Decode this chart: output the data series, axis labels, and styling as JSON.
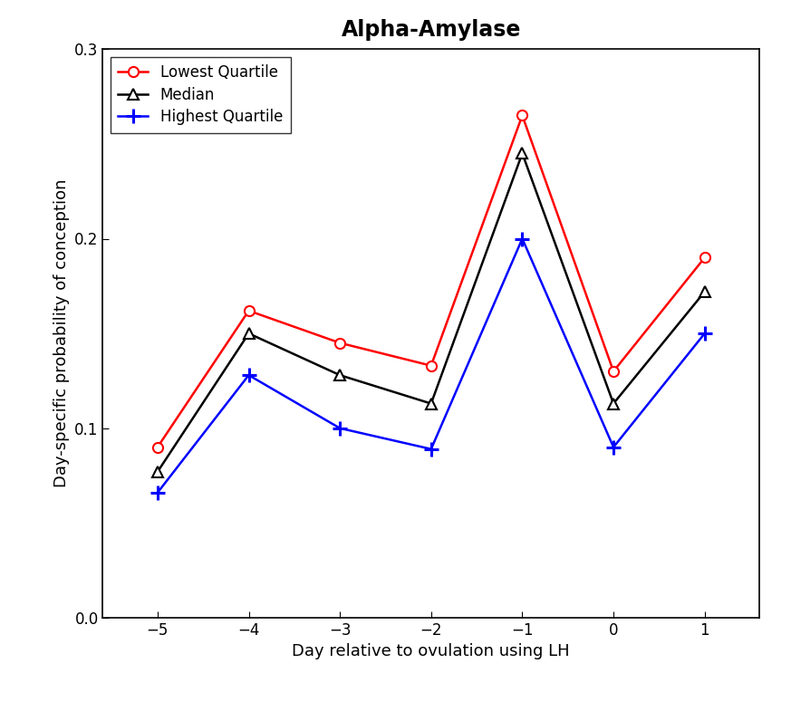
{
  "title": "Alpha-Amylase",
  "xlabel": "Day relative to ovulation using LH",
  "ylabel": "Day-specific probability of conception",
  "x": [
    -5,
    -4,
    -3,
    -2,
    -1,
    0,
    1
  ],
  "lowest_quartile": [
    0.09,
    0.162,
    0.145,
    0.133,
    0.265,
    0.13,
    0.19
  ],
  "median": [
    0.077,
    0.15,
    0.128,
    0.113,
    0.245,
    0.113,
    0.172
  ],
  "highest_quartile": [
    0.066,
    0.128,
    0.1,
    0.089,
    0.2,
    0.09,
    0.15
  ],
  "lowest_color": "#ff0000",
  "median_color": "#000000",
  "highest_color": "#0000ff",
  "ylim": [
    0.0,
    0.3
  ],
  "yticks": [
    0.0,
    0.1,
    0.2,
    0.3
  ],
  "legend_labels": [
    "Lowest Quartile",
    "Median",
    "Highest Quartile"
  ],
  "title_fontsize": 17,
  "axis_label_fontsize": 13,
  "tick_fontsize": 12,
  "legend_fontsize": 12,
  "linewidth": 1.8,
  "markersize": 8
}
